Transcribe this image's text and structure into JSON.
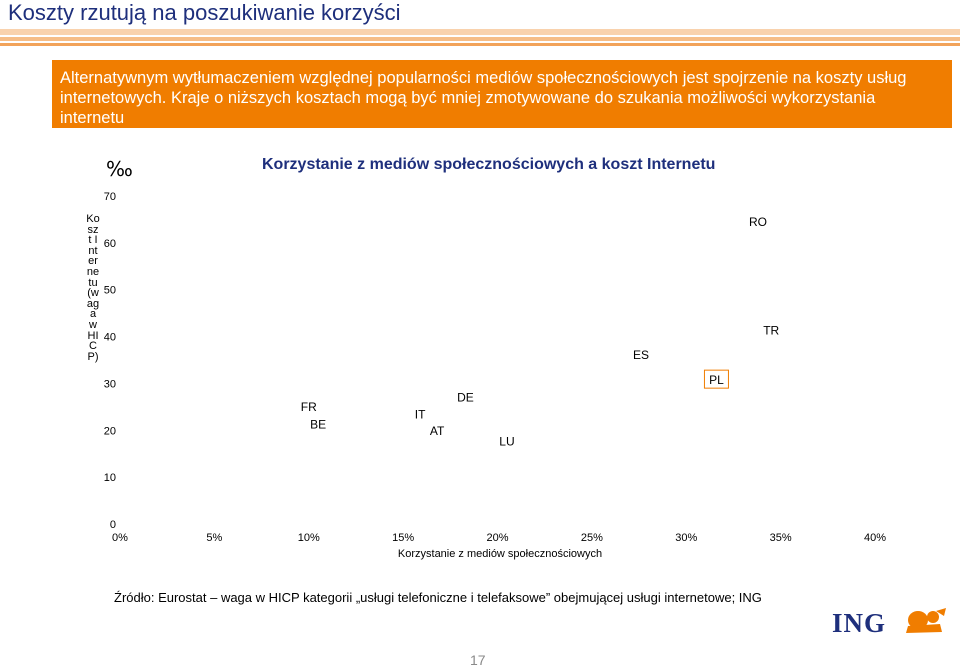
{
  "page": {
    "title": "Koszty rzutują na poszukiwanie korzyści",
    "banner_line1": "Alternatywnym wytłumaczeniem względnej popularności mediów społecznościowych jest spojrzenie na koszty usług",
    "banner_line2": "internetowych. Kraje o niższych kosztach mogą być mniej zmotywowane do szukania możliwości wykorzystania internetu",
    "source": "Źródło: Eurostat – waga w HICP kategorii „usługi telefoniczne i telefaksowe” obejmującej usługi internetowe; ING",
    "logo_text": "ING",
    "page_number": "17",
    "colors": {
      "title": "#1e2f7c",
      "banner": "#f07d00",
      "stripe": "#f2a35a",
      "logo": "#1e2f7c",
      "lion": "#f07d00"
    }
  },
  "chart_data": {
    "type": "scatter",
    "title": "Korzystanie z mediów społecznościowych a koszt Internetu",
    "unit": "‰",
    "xlabel": "Korzystanie z mediów społecznościowych",
    "ylabel": "Koszt Internetu (waga w HICP)",
    "xlim": [
      0,
      0.4
    ],
    "ylim": [
      0,
      70
    ],
    "x_ticks": [
      "0%",
      "5%",
      "10%",
      "15%",
      "20%",
      "25%",
      "30%",
      "35%",
      "40%"
    ],
    "y_ticks": [
      "0",
      "10",
      "20",
      "30",
      "40",
      "50",
      "60",
      "70"
    ],
    "grid": false,
    "points": [
      {
        "label": "FR",
        "x": 0.1,
        "y": 25.0
      },
      {
        "label": "BE",
        "x": 0.105,
        "y": 21.2
      },
      {
        "label": "IT",
        "x": 0.159,
        "y": 23.4
      },
      {
        "label": "AT",
        "x": 0.168,
        "y": 19.9
      },
      {
        "label": "DE",
        "x": 0.183,
        "y": 27.0
      },
      {
        "label": "LU",
        "x": 0.205,
        "y": 17.6
      },
      {
        "label": "ES",
        "x": 0.276,
        "y": 36.1
      },
      {
        "label": "PL",
        "x": 0.316,
        "y": 30.7
      },
      {
        "label": "RO",
        "x": 0.338,
        "y": 64.4
      },
      {
        "label": "TR",
        "x": 0.345,
        "y": 41.3
      }
    ]
  }
}
